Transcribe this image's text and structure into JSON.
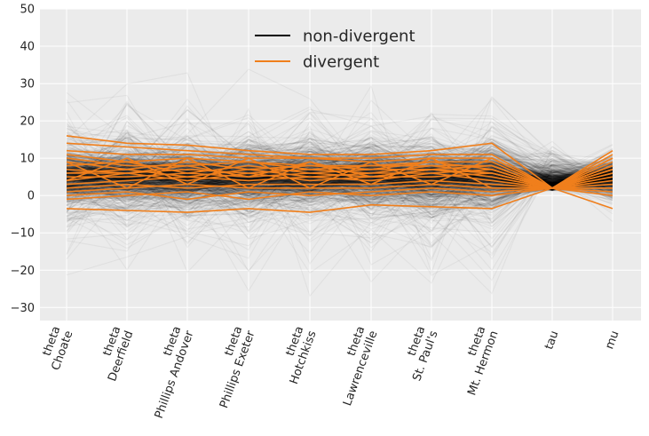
{
  "chart_data": {
    "type": "line",
    "title": "",
    "xlabel": "",
    "ylabel": "",
    "ylim": [
      -33.5,
      50
    ],
    "yticks": [
      50,
      40,
      30,
      20,
      10,
      0,
      -10,
      -20,
      -30
    ],
    "categories": [
      [
        "theta",
        "Choate"
      ],
      [
        "theta",
        "Deerfield"
      ],
      [
        "theta",
        "Phillips Andover"
      ],
      [
        "theta",
        "Phillips Exeter"
      ],
      [
        "theta",
        "Hotchkiss"
      ],
      [
        "theta",
        "Lawrenceville"
      ],
      [
        "theta",
        "St. Paul's"
      ],
      [
        "theta",
        "Mt. Hermon"
      ],
      [
        "tau"
      ],
      [
        "mu"
      ]
    ],
    "legend": {
      "placement": "top-center",
      "entries": [
        {
          "label": "non-divergent",
          "color": "#000000"
        },
        {
          "label": "divergent",
          "color": "#f07f1c"
        }
      ]
    },
    "colors": {
      "background": "#ebebeb",
      "grid": "#ffffff",
      "nondivergent": "#000000",
      "divergent": "#f07f1c"
    },
    "series": [
      {
        "name": "divergent",
        "values": [
          16,
          14,
          13.5,
          12,
          11,
          11,
          12,
          14,
          2,
          12
        ]
      },
      {
        "name": "divergent",
        "values": [
          14,
          13,
          12,
          11,
          10,
          10,
          11,
          11,
          2,
          11
        ]
      },
      {
        "name": "divergent",
        "values": [
          12,
          11,
          11,
          10,
          10,
          9,
          10,
          10,
          2,
          10
        ]
      },
      {
        "name": "divergent",
        "values": [
          11,
          9,
          10,
          9,
          8,
          8,
          9,
          9,
          2,
          9
        ]
      },
      {
        "name": "divergent",
        "values": [
          10,
          8,
          8,
          9,
          7,
          8,
          8,
          8,
          2,
          8
        ]
      },
      {
        "name": "divergent",
        "values": [
          9,
          7,
          9,
          7,
          8,
          7,
          9,
          7,
          2,
          7
        ]
      },
      {
        "name": "divergent",
        "values": [
          8,
          9,
          6,
          8,
          6,
          7,
          7,
          8,
          2,
          8
        ]
      },
      {
        "name": "divergent",
        "values": [
          7,
          6,
          7,
          6,
          7,
          6,
          8,
          6,
          2,
          6
        ]
      },
      {
        "name": "divergent",
        "values": [
          6,
          7,
          5,
          7,
          5,
          6,
          6,
          7,
          2,
          7
        ]
      },
      {
        "name": "divergent",
        "values": [
          5,
          5,
          6,
          5,
          6,
          5,
          7,
          5,
          2,
          5
        ]
      },
      {
        "name": "divergent",
        "values": [
          4,
          6,
          4,
          6,
          4,
          5,
          5,
          6,
          2,
          4
        ]
      },
      {
        "name": "divergent",
        "values": [
          3,
          4,
          5,
          4,
          5,
          4,
          6,
          4,
          2,
          6
        ]
      },
      {
        "name": "divergent",
        "values": [
          2,
          3,
          2,
          3,
          3,
          3,
          4,
          3,
          2,
          3
        ]
      },
      {
        "name": "divergent",
        "values": [
          1,
          2,
          3,
          2,
          2,
          2,
          3,
          2,
          2,
          2
        ]
      },
      {
        "name": "divergent",
        "values": [
          0,
          1,
          -1,
          1,
          0,
          1,
          2,
          1,
          2,
          1
        ]
      },
      {
        "name": "divergent",
        "values": [
          -1,
          0,
          1,
          -1,
          1,
          0,
          1,
          0,
          2,
          0
        ]
      },
      {
        "name": "divergent",
        "values": [
          -3.5,
          -4,
          -4.5,
          -3.5,
          -4.5,
          -2.5,
          -3,
          -3.5,
          2,
          -3.5
        ]
      },
      {
        "name": "divergent",
        "values": [
          4,
          10,
          3,
          10,
          2,
          9,
          3,
          10,
          2,
          2
        ]
      },
      {
        "name": "divergent",
        "values": [
          9,
          2,
          10,
          2,
          9,
          3,
          10,
          2,
          2,
          10
        ]
      },
      {
        "name": "divergent",
        "values": [
          6,
          6,
          8,
          5,
          9,
          5,
          7,
          6,
          2,
          8
        ]
      }
    ]
  }
}
